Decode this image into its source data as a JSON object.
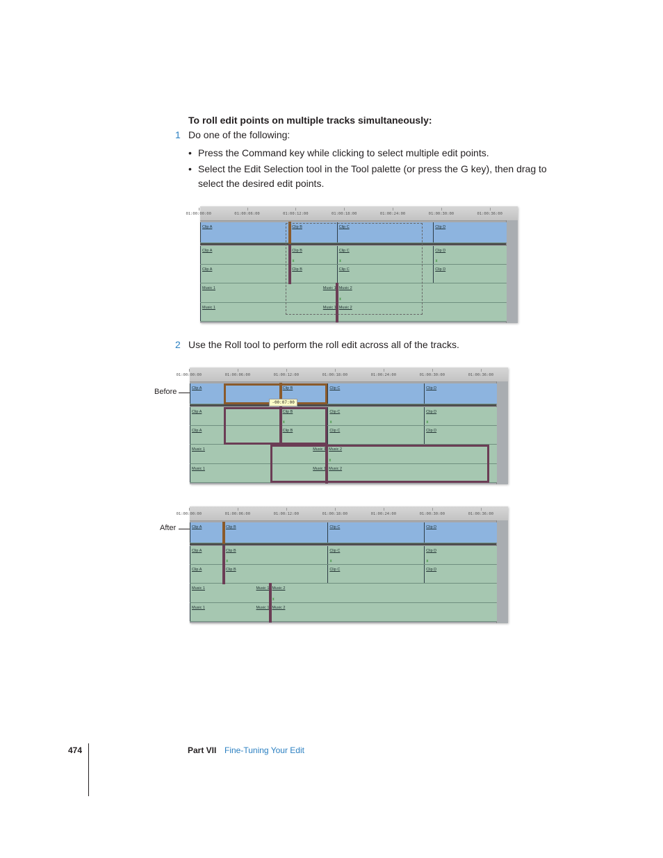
{
  "heading": "To roll edit points on multiple tracks simultaneously:",
  "steps": [
    {
      "num": "1",
      "text": "Do one of the following:"
    },
    {
      "num": "2",
      "text": "Use the Roll tool to perform the roll edit across all of the tracks."
    }
  ],
  "bullets": [
    "Press the Command key while clicking to select multiple edit points.",
    "Select the Edit Selection tool in the Tool palette (or press the G key), then drag to",
    "select the desired edit points."
  ],
  "callouts": {
    "before": "Before",
    "after": "After"
  },
  "footer": {
    "page": "474",
    "part": "Part VII",
    "chapter": "Fine-Tuning Your Edit"
  },
  "colors": {
    "accent": "#2a7fc1",
    "video_clip": "#8db4df",
    "audio_clip": "#a6c7b1",
    "roll_video": "#8a5a2b",
    "roll_audio": "#6b3d55"
  },
  "timelines": [
    {
      "id": "selection",
      "view_seconds": [
        0.2,
        38
      ],
      "ruler": [
        {
          "t": 0,
          "label": "01:00:00:00"
        },
        {
          "t": 6,
          "label": "01:00:06:00"
        },
        {
          "t": 12,
          "label": "01:00:12:00"
        },
        {
          "t": 18,
          "label": "01:00:18:00"
        },
        {
          "t": 24,
          "label": "01:00:24:00"
        },
        {
          "t": 30,
          "label": "01:00:30:00"
        },
        {
          "t": 36,
          "label": "01:00:36:00"
        }
      ],
      "tracks": [
        {
          "kind": "video",
          "clips": [
            {
              "name": "Clip A",
              "start": 0
            },
            {
              "name": "Clip B",
              "start": 11.3
            },
            {
              "name": "Clip C",
              "start": 17.1
            },
            {
              "name": "Clip D",
              "start": 29
            }
          ]
        },
        {
          "kind": "audio",
          "clips": [
            {
              "name": "Clip A",
              "start": 0
            },
            {
              "name": "Clip B",
              "start": 11.3
            },
            {
              "name": "Clip C",
              "start": 17.1
            },
            {
              "name": "Clip D",
              "start": 29
            }
          ]
        },
        {
          "kind": "audio",
          "clips": [
            {
              "name": "Music 1",
              "start": 0
            },
            {
              "name": "Music 2",
              "start": 17.1
            }
          ]
        }
      ],
      "edits": [
        {
          "track": 0,
          "t": 11.3,
          "color": "#8a5a2b"
        },
        {
          "track": 1,
          "t": 11.3,
          "color": "#6b3d55"
        },
        {
          "track": 2,
          "t": 17.1,
          "color": "#6b3d55"
        }
      ],
      "selection": [
        10.8,
        27.5
      ],
      "outlines": [],
      "tooltip": null
    },
    {
      "id": "before",
      "view_seconds": [
        0.1,
        37.9
      ],
      "ruler": [
        {
          "t": 0,
          "label": "01:00:00:00"
        },
        {
          "t": 6,
          "label": "01:00:06:00"
        },
        {
          "t": 12,
          "label": "01:00:12:00"
        },
        {
          "t": 18,
          "label": "01:00:18:00"
        },
        {
          "t": 24,
          "label": "01:00:24:00"
        },
        {
          "t": 30,
          "label": "01:00:30:00"
        },
        {
          "t": 36,
          "label": "01:00:36:00"
        }
      ],
      "tracks": [
        {
          "kind": "video",
          "clips": [
            {
              "name": "Clip A",
              "start": 0
            },
            {
              "name": "Clip B",
              "start": 11.3
            },
            {
              "name": "Clip C",
              "start": 17.1
            },
            {
              "name": "Clip D",
              "start": 29
            }
          ]
        },
        {
          "kind": "audio",
          "clips": [
            {
              "name": "Clip A",
              "start": 0
            },
            {
              "name": "Clip B",
              "start": 11.3
            },
            {
              "name": "Clip C",
              "start": 17.1
            },
            {
              "name": "Clip D",
              "start": 29
            }
          ]
        },
        {
          "kind": "audio",
          "clips": [
            {
              "name": "Music 1",
              "start": 0
            },
            {
              "name": "Music 2",
              "start": 17.0
            }
          ]
        }
      ],
      "edits": [
        {
          "track": 0,
          "t": 11.3,
          "color": "#8a5a2b"
        },
        {
          "track": 1,
          "t": 11.3,
          "color": "#6b3d55"
        },
        {
          "track": 2,
          "t": 17.0,
          "color": "#6b3d55"
        }
      ],
      "outlines": [
        {
          "track": 0,
          "from": 4.3,
          "to": 17.1,
          "color": "#8a5a2b"
        },
        {
          "track": 1,
          "from": 4.3,
          "to": 17.1,
          "color": "#6b3d55"
        },
        {
          "track": 2,
          "from": 10.0,
          "to": 37,
          "color": "#6b3d55"
        }
      ],
      "tooltip": {
        "text": "-00:07:00",
        "t": 9.9
      }
    },
    {
      "id": "after",
      "view_seconds": [
        0.1,
        37.9
      ],
      "ruler": [
        {
          "t": 0,
          "label": "01:00:00:00"
        },
        {
          "t": 6,
          "label": "01:00:06:00"
        },
        {
          "t": 12,
          "label": "01:00:12:00"
        },
        {
          "t": 18,
          "label": "01:00:18:00"
        },
        {
          "t": 24,
          "label": "01:00:24:00"
        },
        {
          "t": 30,
          "label": "01:00:30:00"
        },
        {
          "t": 36,
          "label": "01:00:36:00"
        }
      ],
      "tracks": [
        {
          "kind": "video",
          "clips": [
            {
              "name": "Clip A",
              "start": 0
            },
            {
              "name": "Clip B",
              "start": 4.3
            },
            {
              "name": "Clip C",
              "start": 17.1
            },
            {
              "name": "Clip D",
              "start": 29
            }
          ]
        },
        {
          "kind": "audio",
          "clips": [
            {
              "name": "Clip A",
              "start": 0
            },
            {
              "name": "Clip B",
              "start": 4.3
            },
            {
              "name": "Clip C",
              "start": 17.1
            },
            {
              "name": "Clip D",
              "start": 29
            }
          ]
        },
        {
          "kind": "audio",
          "clips": [
            {
              "name": "Music 1",
              "start": 0
            },
            {
              "name": "Music 2",
              "start": 10.0
            }
          ]
        }
      ],
      "edits": [
        {
          "track": 0,
          "t": 4.3,
          "color": "#8a5a2b"
        },
        {
          "track": 1,
          "t": 4.3,
          "color": "#6b3d55"
        },
        {
          "track": 2,
          "t": 10.0,
          "color": "#6b3d55"
        }
      ],
      "outlines": [],
      "tooltip": null
    }
  ]
}
